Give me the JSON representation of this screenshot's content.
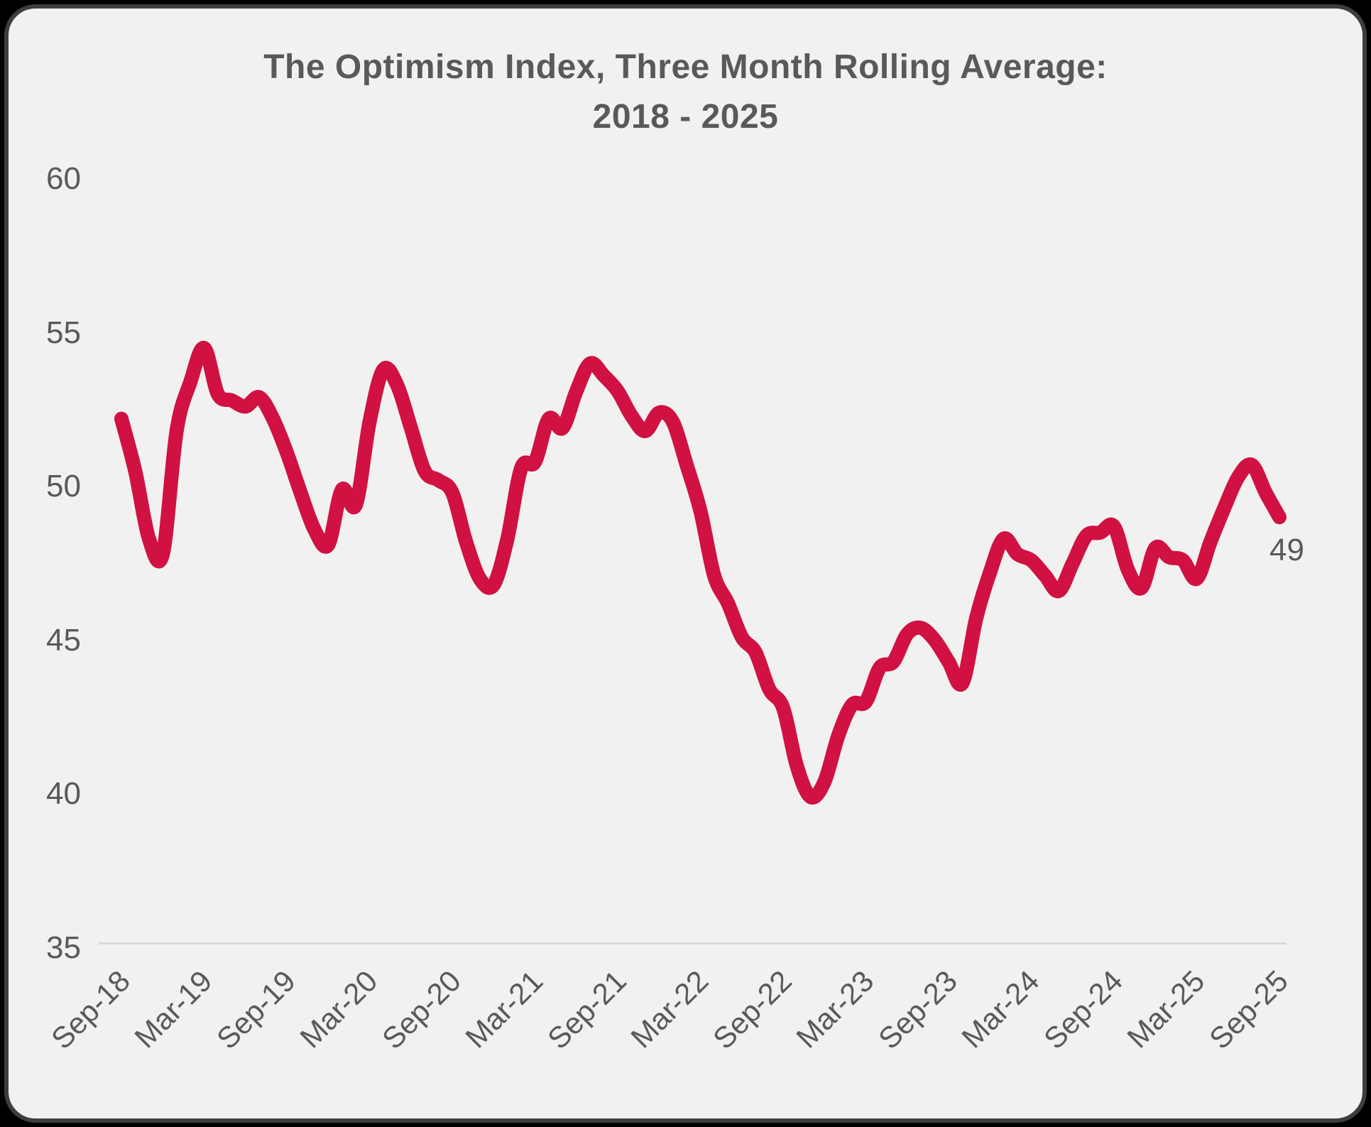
{
  "page": {
    "background_color": "#000000",
    "card_background": "#F1F1F1",
    "card_border_color": "#3D3D3D"
  },
  "title": {
    "line1": "The Optimism Index, Three Month Rolling Average:",
    "line2": "2018 - 2025"
  },
  "end_label": "49",
  "chart_data": {
    "type": "line",
    "title": "The Optimism Index, Three Month Rolling Average: 2018 - 2025",
    "series_name": "Optimism Index, three month rolling average",
    "x": [
      "Sep-18",
      "Oct-18",
      "Nov-18",
      "Dec-18",
      "Jan-19",
      "Feb-19",
      "Mar-19",
      "Apr-19",
      "May-19",
      "Jun-19",
      "Jul-19",
      "Aug-19",
      "Sep-19",
      "Oct-19",
      "Nov-19",
      "Dec-19",
      "Jan-20",
      "Feb-20",
      "Mar-20",
      "Apr-20",
      "May-20",
      "Jun-20",
      "Jul-20",
      "Aug-20",
      "Sep-20",
      "Oct-20",
      "Nov-20",
      "Dec-20",
      "Jan-21",
      "Feb-21",
      "Mar-21",
      "Apr-21",
      "May-21",
      "Jun-21",
      "Jul-21",
      "Aug-21",
      "Sep-21",
      "Oct-21",
      "Nov-21",
      "Dec-21",
      "Jan-22",
      "Feb-22",
      "Mar-22",
      "Apr-22",
      "May-22",
      "Jun-22",
      "Jul-22",
      "Aug-22",
      "Sep-22",
      "Oct-22",
      "Nov-22",
      "Dec-22",
      "Jan-23",
      "Feb-23",
      "Mar-23",
      "Apr-23",
      "May-23",
      "Jun-23",
      "Jul-23",
      "Aug-23",
      "Sep-23",
      "Oct-23",
      "Nov-23",
      "Dec-23",
      "Jan-24",
      "Feb-24",
      "Mar-24",
      "Apr-24",
      "May-24",
      "Jun-24",
      "Jul-24",
      "Aug-24",
      "Sep-24",
      "Oct-24",
      "Nov-24",
      "Dec-24",
      "Jan-25",
      "Feb-25",
      "Mar-25",
      "Apr-25",
      "May-25",
      "Jun-25",
      "Jul-25",
      "Aug-25",
      "Sep-25"
    ],
    "values": [
      52.2,
      50.5,
      48.3,
      47.8,
      51.8,
      53.4,
      54.5,
      53.0,
      52.8,
      52.6,
      52.9,
      52.2,
      51.1,
      49.8,
      48.6,
      48.1,
      49.9,
      49.4,
      52.1,
      53.8,
      53.3,
      51.9,
      50.5,
      50.2,
      49.8,
      48.2,
      47.0,
      46.8,
      48.3,
      50.6,
      50.8,
      52.2,
      51.9,
      53.1,
      54.0,
      53.6,
      53.1,
      52.3,
      51.8,
      52.4,
      52.1,
      50.7,
      49.2,
      47.1,
      46.2,
      45.1,
      44.6,
      43.4,
      42.8,
      40.9,
      39.9,
      40.4,
      41.9,
      42.9,
      43.0,
      44.1,
      44.3,
      45.2,
      45.4,
      45.0,
      44.3,
      43.6,
      45.7,
      47.2,
      48.3,
      47.8,
      47.6,
      47.1,
      46.6,
      47.5,
      48.4,
      48.5,
      48.7,
      47.3,
      46.7,
      48.0,
      47.7,
      47.6,
      47.0,
      48.2,
      49.3,
      50.3,
      50.7,
      49.8,
      49.0
    ],
    "x_tick_labels": [
      "Sep-18",
      "Mar-19",
      "Sep-19",
      "Mar-20",
      "Sep-20",
      "Mar-21",
      "Sep-21",
      "Mar-22",
      "Sep-22",
      "Mar-23",
      "Sep-23",
      "Mar-24",
      "Sep-24",
      "Mar-25",
      "Sep-25"
    ],
    "y_ticks": [
      60,
      55,
      50,
      45,
      40,
      35
    ],
    "ylim": [
      35,
      60
    ],
    "grid": false,
    "legend_position": "none",
    "line_color": "#D01142",
    "axis_text_color": "#595959",
    "axis_line_color": "#D9D9D9",
    "last_point_label": "49"
  }
}
